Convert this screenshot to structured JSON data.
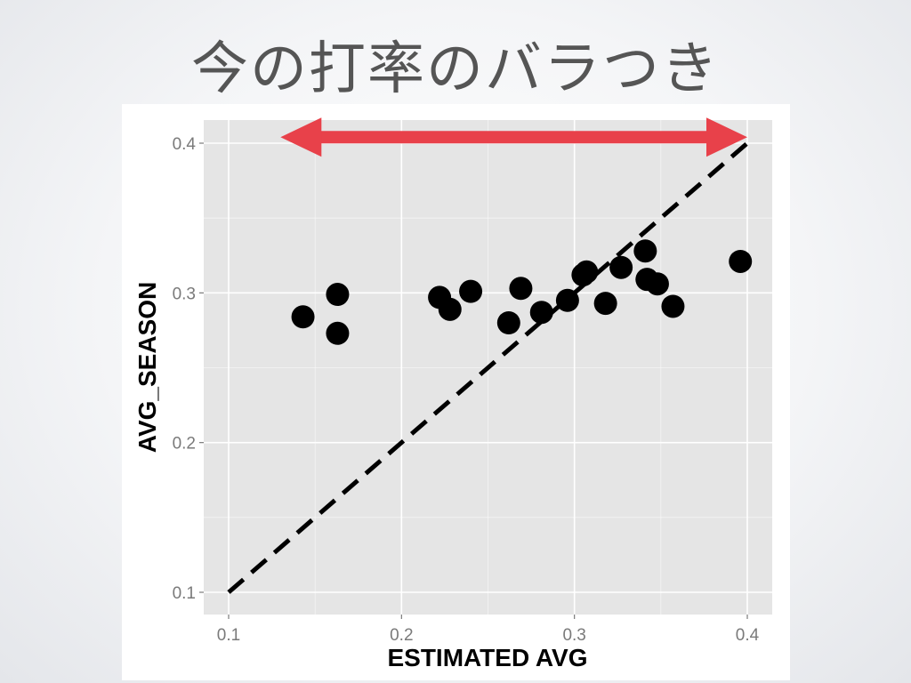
{
  "slide": {
    "title": "今の打率のバラつき"
  },
  "colors": {
    "panel_background": "#e5e5e5",
    "gridline": "#ffffff",
    "point": "#000000",
    "reference_line": "#000000",
    "arrow": "#e8414a",
    "tick_text": "#7a7a7a"
  },
  "chart_data": {
    "type": "scatter",
    "title": "",
    "xlabel": "ESTIMATED AVG",
    "ylabel": "AVG_SEASON",
    "xlim": [
      0.1,
      0.4
    ],
    "ylim": [
      0.1,
      0.4
    ],
    "x_ticks": [
      "0.1",
      "0.2",
      "0.3",
      "0.4"
    ],
    "y_ticks": [
      "0.1",
      "0.2",
      "0.3",
      "0.4"
    ],
    "grid": true,
    "points": [
      {
        "x": 0.143,
        "y": 0.284
      },
      {
        "x": 0.163,
        "y": 0.299
      },
      {
        "x": 0.163,
        "y": 0.273
      },
      {
        "x": 0.222,
        "y": 0.297
      },
      {
        "x": 0.228,
        "y": 0.289
      },
      {
        "x": 0.24,
        "y": 0.301
      },
      {
        "x": 0.262,
        "y": 0.28
      },
      {
        "x": 0.269,
        "y": 0.303
      },
      {
        "x": 0.281,
        "y": 0.287
      },
      {
        "x": 0.296,
        "y": 0.295
      },
      {
        "x": 0.305,
        "y": 0.312
      },
      {
        "x": 0.307,
        "y": 0.314
      },
      {
        "x": 0.318,
        "y": 0.293
      },
      {
        "x": 0.327,
        "y": 0.317
      },
      {
        "x": 0.341,
        "y": 0.328
      },
      {
        "x": 0.342,
        "y": 0.309
      },
      {
        "x": 0.348,
        "y": 0.306
      },
      {
        "x": 0.357,
        "y": 0.291
      },
      {
        "x": 0.396,
        "y": 0.321
      }
    ],
    "reference_line": {
      "style": "dashed",
      "from": [
        0.1,
        0.1
      ],
      "to": [
        0.4,
        0.4
      ]
    },
    "annotations": [
      {
        "type": "double-arrow",
        "color": "#e8414a",
        "x_from": 0.13,
        "x_to": 0.4,
        "y": 0.404
      }
    ]
  }
}
